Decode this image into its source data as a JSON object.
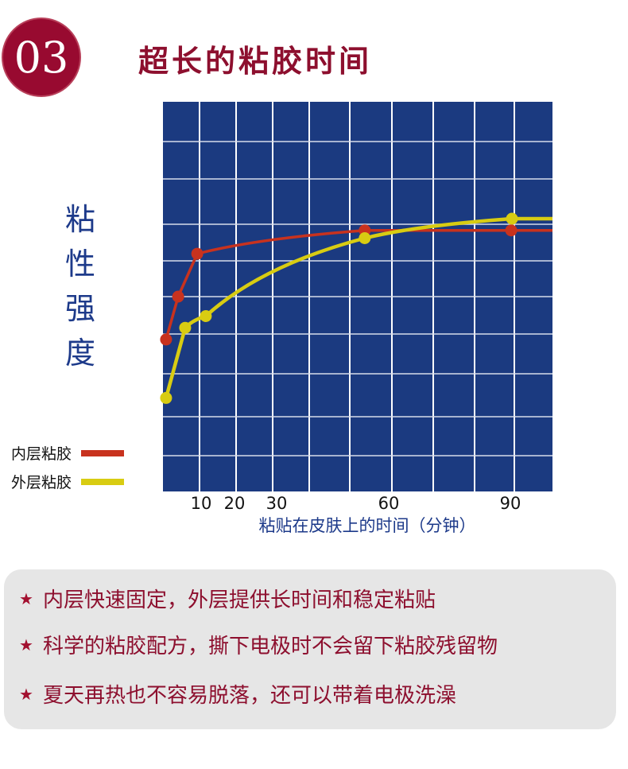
{
  "header": {
    "number": "03",
    "title": "超长的粘胶时间"
  },
  "chart_data": {
    "type": "line",
    "title": "超长的粘胶时间",
    "ylabel": "粘性强度",
    "xlabel": "粘贴在皮肤上的时间（分钟）",
    "xticks": [
      10,
      20,
      30,
      60,
      90
    ],
    "xlim": [
      0,
      100
    ],
    "ylim": [
      0,
      10
    ],
    "grid": true,
    "background": "#1b3a80",
    "legend_placement": "left",
    "series": [
      {
        "name": "内层粘胶",
        "color": "#c8321e",
        "points": [
          [
            0.8,
            3.9
          ],
          [
            3.9,
            5.0
          ],
          [
            8.8,
            6.1
          ],
          [
            51.8,
            6.7
          ],
          [
            89.4,
            6.7
          ]
        ],
        "line_end": [
          100,
          6.7
        ]
      },
      {
        "name": "外层粘胶",
        "color": "#d8cc12",
        "points": [
          [
            0.8,
            2.4
          ],
          [
            5.7,
            4.2
          ],
          [
            11,
            4.5
          ],
          [
            51.8,
            6.5
          ],
          [
            89.6,
            7.0
          ]
        ],
        "line_end": [
          100,
          7.0
        ]
      }
    ]
  },
  "features": {
    "items": [
      "内层快速固定，外层提供长时间和稳定粘贴",
      "科学的粘胶配方，撕下电极时不会留下粘胶残留物",
      "夏天再热也不容易脱落，还可以带着电极洗澡"
    ],
    "icon": "star-icon",
    "star_char": "★"
  }
}
